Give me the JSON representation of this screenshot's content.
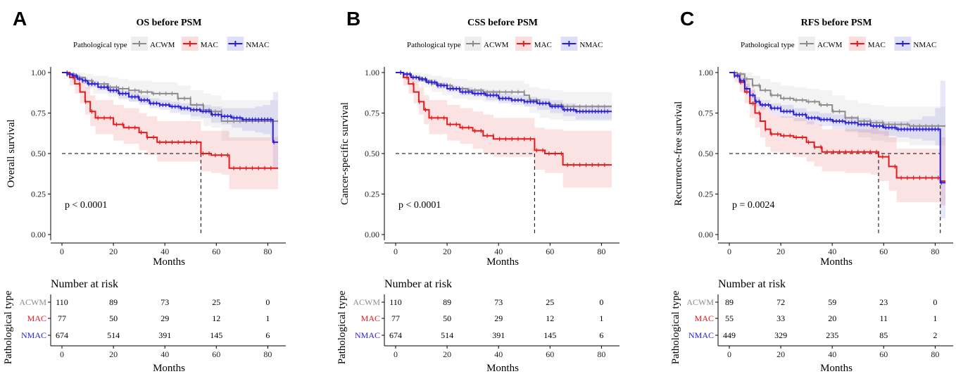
{
  "legend_title": "Pathological type",
  "x_axis_label": "Months",
  "risk_table_title": "Number at risk",
  "risk_y_label": "Pathological type",
  "colors": {
    "ACWM": "#8c8c8c",
    "MAC": "#e41a1c",
    "NMAC": "#2b1fd6"
  },
  "chart_data": [
    {
      "type": "line",
      "panel": "A",
      "title": "OS before PSM",
      "ylabel": "Overall survival",
      "xlabel": "Months",
      "xlim": [
        0,
        84
      ],
      "ylim": [
        0,
        1
      ],
      "x_ticks": [
        0,
        20,
        40,
        60,
        80
      ],
      "y_ticks": [
        "0.00",
        "0.25",
        "0.50",
        "0.75",
        "1.00"
      ],
      "pvalue": "p < 0.0001",
      "median_lines": [
        54
      ],
      "series": [
        {
          "name": "ACWM",
          "x": [
            0,
            2,
            5,
            9,
            12,
            18,
            22,
            26,
            30,
            35,
            45,
            50,
            55,
            58,
            62,
            70,
            80,
            84
          ],
          "y": [
            1.0,
            0.99,
            0.97,
            0.95,
            0.93,
            0.91,
            0.9,
            0.89,
            0.88,
            0.87,
            0.84,
            0.8,
            0.77,
            0.76,
            0.7,
            0.7,
            0.7,
            0.7
          ],
          "lower": [
            1.0,
            0.97,
            0.93,
            0.9,
            0.87,
            0.85,
            0.83,
            0.82,
            0.81,
            0.8,
            0.76,
            0.71,
            0.67,
            0.66,
            0.58,
            0.58,
            0.58,
            0.58
          ],
          "upper": [
            1.0,
            1.0,
            1.0,
            0.99,
            0.98,
            0.97,
            0.96,
            0.95,
            0.95,
            0.94,
            0.92,
            0.89,
            0.87,
            0.86,
            0.83,
            0.83,
            0.83,
            0.83
          ]
        },
        {
          "name": "MAC",
          "x": [
            0,
            3,
            5,
            7,
            9,
            11,
            13,
            15,
            18,
            20,
            24,
            30,
            33,
            37,
            40,
            45,
            48,
            54,
            58,
            62,
            65,
            84
          ],
          "y": [
            1.0,
            0.97,
            0.93,
            0.88,
            0.82,
            0.76,
            0.72,
            0.72,
            0.72,
            0.68,
            0.66,
            0.63,
            0.6,
            0.57,
            0.57,
            0.57,
            0.57,
            0.5,
            0.49,
            0.49,
            0.41,
            0.41
          ],
          "lower": [
            1.0,
            0.92,
            0.87,
            0.81,
            0.74,
            0.67,
            0.62,
            0.62,
            0.62,
            0.58,
            0.56,
            0.52,
            0.49,
            0.45,
            0.45,
            0.45,
            0.45,
            0.39,
            0.38,
            0.37,
            0.28,
            0.28
          ],
          "upper": [
            1.0,
            1.0,
            0.99,
            0.96,
            0.91,
            0.86,
            0.83,
            0.83,
            0.83,
            0.8,
            0.78,
            0.75,
            0.73,
            0.7,
            0.7,
            0.7,
            0.7,
            0.64,
            0.64,
            0.64,
            0.6,
            0.6
          ]
        },
        {
          "name": "NMAC",
          "x": [
            0,
            2,
            4,
            6,
            8,
            10,
            14,
            18,
            22,
            26,
            30,
            34,
            38,
            42,
            46,
            50,
            54,
            58,
            62,
            66,
            70,
            75,
            78,
            81,
            82,
            84
          ],
          "y": [
            1.0,
            0.99,
            0.98,
            0.96,
            0.95,
            0.93,
            0.91,
            0.89,
            0.87,
            0.85,
            0.83,
            0.81,
            0.8,
            0.79,
            0.78,
            0.77,
            0.76,
            0.74,
            0.73,
            0.72,
            0.71,
            0.71,
            0.71,
            0.71,
            0.57,
            0.57
          ],
          "lower": [
            1.0,
            0.98,
            0.97,
            0.95,
            0.93,
            0.91,
            0.89,
            0.87,
            0.84,
            0.82,
            0.8,
            0.78,
            0.77,
            0.75,
            0.74,
            0.73,
            0.72,
            0.69,
            0.68,
            0.66,
            0.64,
            0.63,
            0.62,
            0.6,
            0.4,
            0.4
          ],
          "upper": [
            1.0,
            1.0,
            0.99,
            0.98,
            0.97,
            0.95,
            0.93,
            0.91,
            0.89,
            0.88,
            0.86,
            0.84,
            0.83,
            0.82,
            0.81,
            0.81,
            0.8,
            0.79,
            0.78,
            0.78,
            0.78,
            0.79,
            0.8,
            0.83,
            0.88,
            0.88
          ]
        }
      ],
      "risk_table": {
        "times": [
          0,
          20,
          40,
          60,
          80
        ],
        "rows": [
          {
            "group": "ACWM",
            "values": [
              "110",
              "89",
              "73",
              "25",
              "0"
            ]
          },
          {
            "group": "MAC",
            "values": [
              "77",
              "50",
              "29",
              "12",
              "1"
            ]
          },
          {
            "group": "NMAC",
            "values": [
              "674",
              "514",
              "391",
              "145",
              "6"
            ]
          }
        ]
      }
    },
    {
      "type": "line",
      "panel": "B",
      "title": "CSS before PSM",
      "ylabel": "Cancer-specific survival",
      "xlabel": "Months",
      "xlim": [
        0,
        84
      ],
      "ylim": [
        0,
        1
      ],
      "x_ticks": [
        0,
        20,
        40,
        60,
        80
      ],
      "y_ticks": [
        "0.00",
        "0.25",
        "0.50",
        "0.75",
        "1.00"
      ],
      "pvalue": "p < 0.0001",
      "median_lines": [
        54
      ],
      "series": [
        {
          "name": "ACWM",
          "x": [
            0,
            3,
            6,
            10,
            14,
            18,
            22,
            28,
            34,
            40,
            50,
            52,
            56,
            60,
            65,
            70,
            80,
            84
          ],
          "y": [
            1.0,
            0.99,
            0.97,
            0.95,
            0.93,
            0.92,
            0.9,
            0.89,
            0.88,
            0.88,
            0.86,
            0.83,
            0.81,
            0.8,
            0.79,
            0.79,
            0.79,
            0.79
          ],
          "lower": [
            1.0,
            0.97,
            0.94,
            0.91,
            0.88,
            0.86,
            0.84,
            0.83,
            0.82,
            0.82,
            0.79,
            0.75,
            0.72,
            0.71,
            0.7,
            0.7,
            0.7,
            0.7
          ],
          "upper": [
            1.0,
            1.0,
            1.0,
            0.99,
            0.98,
            0.97,
            0.96,
            0.95,
            0.95,
            0.95,
            0.93,
            0.91,
            0.9,
            0.89,
            0.88,
            0.88,
            0.88,
            0.88
          ]
        },
        {
          "name": "MAC",
          "x": [
            0,
            3,
            5,
            7,
            9,
            11,
            13,
            15,
            18,
            20,
            25,
            30,
            34,
            38,
            45,
            50,
            54,
            58,
            62,
            65,
            84
          ],
          "y": [
            1.0,
            0.97,
            0.93,
            0.88,
            0.82,
            0.77,
            0.72,
            0.72,
            0.72,
            0.68,
            0.66,
            0.64,
            0.61,
            0.59,
            0.59,
            0.59,
            0.52,
            0.5,
            0.5,
            0.43,
            0.43
          ],
          "lower": [
            1.0,
            0.92,
            0.87,
            0.81,
            0.74,
            0.68,
            0.62,
            0.62,
            0.62,
            0.58,
            0.56,
            0.53,
            0.5,
            0.48,
            0.48,
            0.48,
            0.4,
            0.38,
            0.38,
            0.29,
            0.29
          ],
          "upper": [
            1.0,
            1.0,
            0.99,
            0.96,
            0.91,
            0.86,
            0.83,
            0.83,
            0.83,
            0.8,
            0.78,
            0.76,
            0.74,
            0.72,
            0.72,
            0.72,
            0.66,
            0.65,
            0.65,
            0.64,
            0.64
          ]
        },
        {
          "name": "NMAC",
          "x": [
            0,
            3,
            6,
            9,
            12,
            16,
            20,
            25,
            30,
            35,
            40,
            45,
            50,
            55,
            60,
            65,
            70,
            75,
            80,
            84
          ],
          "y": [
            1.0,
            0.99,
            0.97,
            0.96,
            0.94,
            0.92,
            0.9,
            0.88,
            0.87,
            0.86,
            0.84,
            0.83,
            0.82,
            0.81,
            0.79,
            0.77,
            0.76,
            0.76,
            0.76,
            0.76
          ],
          "lower": [
            1.0,
            0.98,
            0.96,
            0.95,
            0.93,
            0.9,
            0.88,
            0.86,
            0.85,
            0.83,
            0.81,
            0.8,
            0.79,
            0.77,
            0.75,
            0.73,
            0.71,
            0.71,
            0.71,
            0.71
          ],
          "upper": [
            1.0,
            1.0,
            0.98,
            0.97,
            0.96,
            0.94,
            0.92,
            0.91,
            0.9,
            0.89,
            0.87,
            0.86,
            0.85,
            0.84,
            0.83,
            0.81,
            0.8,
            0.8,
            0.8,
            0.8
          ]
        }
      ],
      "risk_table": {
        "times": [
          0,
          20,
          40,
          60,
          80
        ],
        "rows": [
          {
            "group": "ACWM",
            "values": [
              "110",
              "89",
              "73",
              "25",
              "0"
            ]
          },
          {
            "group": "MAC",
            "values": [
              "77",
              "50",
              "29",
              "12",
              "1"
            ]
          },
          {
            "group": "NMAC",
            "values": [
              "674",
              "514",
              "391",
              "145",
              "6"
            ]
          }
        ]
      }
    },
    {
      "type": "line",
      "panel": "C",
      "title": "RFS before PSM",
      "ylabel": "Recurrence-free survival",
      "xlabel": "Months",
      "xlim": [
        0,
        84
      ],
      "ylim": [
        0,
        1
      ],
      "x_ticks": [
        0,
        20,
        40,
        60,
        80
      ],
      "y_ticks": [
        "0.00",
        "0.25",
        "0.50",
        "0.75",
        "1.00"
      ],
      "pvalue": "p = 0.0024",
      "median_lines": [
        58,
        82
      ],
      "series": [
        {
          "name": "ACWM",
          "x": [
            0,
            3,
            6,
            9,
            12,
            16,
            20,
            25,
            30,
            35,
            40,
            45,
            50,
            55,
            60,
            70,
            80,
            84
          ],
          "y": [
            1.0,
            0.99,
            0.96,
            0.92,
            0.89,
            0.86,
            0.84,
            0.83,
            0.82,
            0.8,
            0.76,
            0.72,
            0.7,
            0.69,
            0.68,
            0.67,
            0.67,
            0.67
          ],
          "lower": [
            1.0,
            0.96,
            0.91,
            0.86,
            0.82,
            0.79,
            0.76,
            0.75,
            0.74,
            0.72,
            0.67,
            0.63,
            0.6,
            0.58,
            0.57,
            0.55,
            0.55,
            0.55
          ],
          "upper": [
            1.0,
            1.0,
            1.0,
            0.98,
            0.96,
            0.94,
            0.92,
            0.91,
            0.9,
            0.89,
            0.86,
            0.83,
            0.81,
            0.8,
            0.79,
            0.79,
            0.79,
            0.79
          ]
        },
        {
          "name": "MAC",
          "x": [
            0,
            2,
            4,
            6,
            8,
            10,
            12,
            14,
            16,
            20,
            25,
            30,
            33,
            36,
            40,
            45,
            50,
            55,
            58,
            62,
            65,
            70,
            80,
            82,
            84
          ],
          "y": [
            1.0,
            0.98,
            0.94,
            0.88,
            0.81,
            0.75,
            0.7,
            0.65,
            0.62,
            0.61,
            0.6,
            0.57,
            0.54,
            0.51,
            0.51,
            0.51,
            0.51,
            0.51,
            0.48,
            0.42,
            0.35,
            0.35,
            0.35,
            0.33,
            0.33
          ],
          "lower": [
            1.0,
            0.94,
            0.88,
            0.81,
            0.72,
            0.66,
            0.6,
            0.54,
            0.51,
            0.5,
            0.48,
            0.45,
            0.42,
            0.39,
            0.39,
            0.38,
            0.38,
            0.37,
            0.33,
            0.27,
            0.2,
            0.2,
            0.2,
            0.18,
            0.18
          ],
          "upper": [
            1.0,
            1.0,
            1.0,
            0.95,
            0.9,
            0.85,
            0.81,
            0.77,
            0.74,
            0.73,
            0.72,
            0.7,
            0.68,
            0.65,
            0.65,
            0.65,
            0.65,
            0.66,
            0.64,
            0.6,
            0.53,
            0.53,
            0.53,
            0.6,
            0.6
          ]
        },
        {
          "name": "NMAC",
          "x": [
            0,
            2,
            4,
            6,
            8,
            10,
            12,
            16,
            20,
            25,
            30,
            35,
            40,
            45,
            50,
            55,
            60,
            65,
            70,
            75,
            80,
            82,
            84
          ],
          "y": [
            1.0,
            0.98,
            0.95,
            0.9,
            0.86,
            0.82,
            0.8,
            0.78,
            0.76,
            0.74,
            0.72,
            0.71,
            0.7,
            0.69,
            0.68,
            0.67,
            0.66,
            0.65,
            0.65,
            0.65,
            0.65,
            0.32,
            0.32
          ],
          "lower": [
            1.0,
            0.97,
            0.93,
            0.88,
            0.83,
            0.79,
            0.77,
            0.74,
            0.72,
            0.7,
            0.68,
            0.67,
            0.65,
            0.64,
            0.63,
            0.62,
            0.61,
            0.6,
            0.59,
            0.58,
            0.55,
            0.1,
            0.1
          ],
          "upper": [
            1.0,
            1.0,
            0.97,
            0.93,
            0.89,
            0.85,
            0.83,
            0.81,
            0.8,
            0.78,
            0.76,
            0.75,
            0.74,
            0.73,
            0.72,
            0.71,
            0.7,
            0.7,
            0.71,
            0.73,
            0.78,
            0.95,
            0.95
          ]
        }
      ],
      "risk_table": {
        "times": [
          0,
          20,
          40,
          60,
          80
        ],
        "rows": [
          {
            "group": "ACWM",
            "values": [
              "89",
              "72",
              "59",
              "23",
              "0"
            ]
          },
          {
            "group": "MAC",
            "values": [
              "55",
              "33",
              "20",
              "11",
              "1"
            ]
          },
          {
            "group": "NMAC",
            "values": [
              "449",
              "329",
              "235",
              "85",
              "2"
            ]
          }
        ]
      }
    }
  ]
}
